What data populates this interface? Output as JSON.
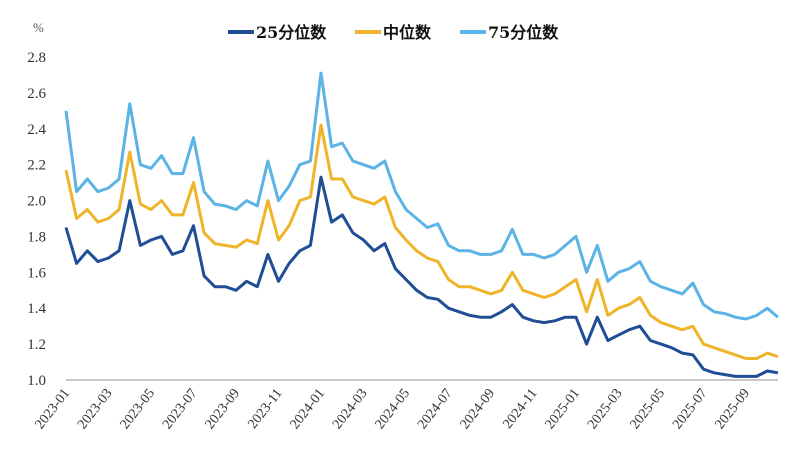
{
  "chart_data": {
    "type": "line",
    "title": "",
    "ylabel": "%",
    "xlabel": "",
    "ylim": [
      1.0,
      2.8
    ],
    "yticks": [
      "1.0",
      "1.2",
      "1.4",
      "1.6",
      "1.8",
      "2.0",
      "2.2",
      "2.4",
      "2.6",
      "2.8"
    ],
    "xticks": [
      "2023-01",
      "2023-03",
      "2023-05",
      "2023-07",
      "2023-09",
      "2023-11",
      "2024-01",
      "2024-03",
      "2024-05",
      "2024-07",
      "2024-09",
      "2024-11",
      "2025-01",
      "2025-03",
      "2025-05",
      "2025-07",
      "2025-09"
    ],
    "x_unit": "months since 2023-01, semi-monthly samples",
    "x": [
      0,
      0.5,
      1,
      1.5,
      2,
      2.5,
      3,
      3.5,
      4,
      4.5,
      5,
      5.5,
      6,
      6.5,
      7,
      7.5,
      8,
      8.5,
      9,
      9.5,
      10,
      10.5,
      11,
      11.5,
      12,
      12.5,
      13,
      13.5,
      14,
      14.5,
      15,
      15.5,
      16,
      16.5,
      17,
      17.5,
      18,
      18.5,
      19,
      19.5,
      20,
      20.5,
      21,
      21.5,
      22,
      22.5,
      23,
      23.5,
      24,
      24.5,
      25,
      25.5,
      26,
      26.5,
      27,
      27.5,
      28,
      28.5,
      29,
      29.5,
      30,
      30.5,
      31,
      31.5,
      32,
      32.5,
      33,
      33.5
    ],
    "legend_position": "top-center",
    "grid": false,
    "series": [
      {
        "name": "25分位数",
        "color": "#1f4e96",
        "values": [
          1.85,
          1.65,
          1.72,
          1.66,
          1.68,
          1.72,
          2.0,
          1.75,
          1.78,
          1.8,
          1.7,
          1.72,
          1.86,
          1.58,
          1.52,
          1.52,
          1.5,
          1.55,
          1.52,
          1.7,
          1.55,
          1.65,
          1.72,
          1.75,
          2.13,
          1.88,
          1.92,
          1.82,
          1.78,
          1.72,
          1.76,
          1.62,
          1.56,
          1.5,
          1.46,
          1.45,
          1.4,
          1.38,
          1.36,
          1.35,
          1.35,
          1.38,
          1.42,
          1.35,
          1.33,
          1.32,
          1.33,
          1.35,
          1.35,
          1.2,
          1.35,
          1.22,
          1.25,
          1.28,
          1.3,
          1.22,
          1.2,
          1.18,
          1.15,
          1.14,
          1.06,
          1.04,
          1.03,
          1.02,
          1.02,
          1.02,
          1.05,
          1.04
        ]
      },
      {
        "name": "中位数",
        "color": "#f0b42a",
        "values": [
          2.17,
          1.9,
          1.95,
          1.88,
          1.9,
          1.95,
          2.27,
          1.98,
          1.95,
          2.0,
          1.92,
          1.92,
          2.1,
          1.82,
          1.76,
          1.75,
          1.74,
          1.78,
          1.76,
          2.0,
          1.78,
          1.86,
          2.0,
          2.02,
          2.42,
          2.12,
          2.12,
          2.02,
          2.0,
          1.98,
          2.02,
          1.85,
          1.78,
          1.72,
          1.68,
          1.66,
          1.56,
          1.52,
          1.52,
          1.5,
          1.48,
          1.5,
          1.6,
          1.5,
          1.48,
          1.46,
          1.48,
          1.52,
          1.56,
          1.38,
          1.56,
          1.36,
          1.4,
          1.42,
          1.46,
          1.36,
          1.32,
          1.3,
          1.28,
          1.3,
          1.2,
          1.18,
          1.16,
          1.14,
          1.12,
          1.12,
          1.15,
          1.13
        ]
      },
      {
        "name": "75分位数",
        "color": "#5bb3e6",
        "values": [
          2.5,
          2.05,
          2.12,
          2.05,
          2.07,
          2.12,
          2.54,
          2.2,
          2.18,
          2.25,
          2.15,
          2.15,
          2.35,
          2.05,
          1.98,
          1.97,
          1.95,
          2.0,
          1.97,
          2.22,
          2.0,
          2.08,
          2.2,
          2.22,
          2.71,
          2.3,
          2.32,
          2.22,
          2.2,
          2.18,
          2.22,
          2.05,
          1.95,
          1.9,
          1.85,
          1.87,
          1.75,
          1.72,
          1.72,
          1.7,
          1.7,
          1.72,
          1.84,
          1.7,
          1.7,
          1.68,
          1.7,
          1.75,
          1.8,
          1.6,
          1.75,
          1.55,
          1.6,
          1.62,
          1.66,
          1.55,
          1.52,
          1.5,
          1.48,
          1.54,
          1.42,
          1.38,
          1.37,
          1.35,
          1.34,
          1.36,
          1.4,
          1.35
        ]
      }
    ]
  }
}
